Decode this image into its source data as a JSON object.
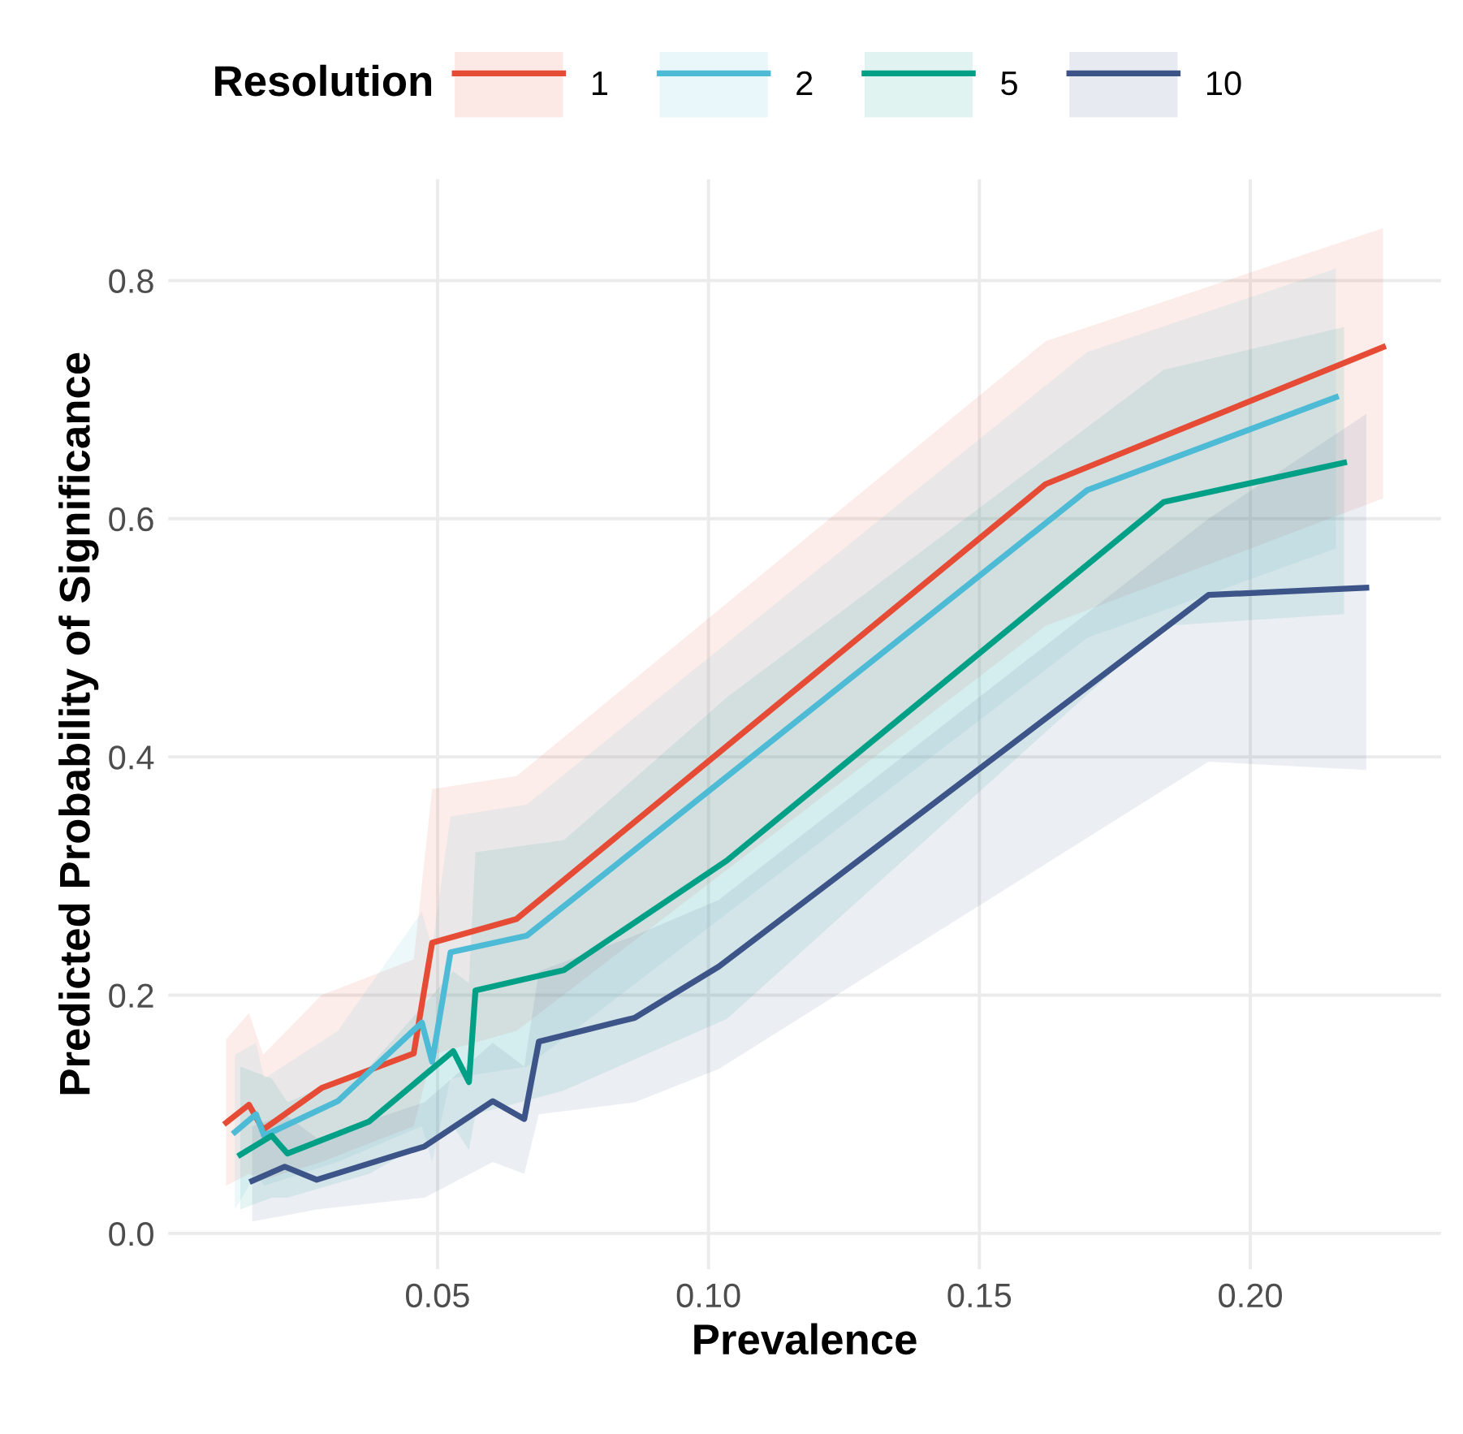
{
  "chart_data": {
    "type": "line",
    "xlabel": "Prevalence",
    "ylabel": "Predicted Probability of Significance",
    "legend_title": "Resolution",
    "series": [
      {
        "name": "1",
        "color": "#e64b35",
        "x": [
          0.011,
          0.0152,
          0.0178,
          0.0286,
          0.0456,
          0.049,
          0.0646,
          0.1622,
          0.2245
        ],
        "values": [
          0.093,
          0.108,
          0.087,
          0.122,
          0.151,
          0.244,
          0.264,
          0.629,
          0.744
        ],
        "lower": [
          0.04,
          0.05,
          0.045,
          0.06,
          0.09,
          0.15,
          0.17,
          0.51,
          0.617
        ],
        "upper": [
          0.163,
          0.185,
          0.15,
          0.2,
          0.23,
          0.373,
          0.384,
          0.749,
          0.844
        ]
      },
      {
        "name": "2",
        "color": "#4dbbd5",
        "x": [
          0.0126,
          0.0165,
          0.018,
          0.0316,
          0.0471,
          0.049,
          0.0524,
          0.0665,
          0.1699,
          0.2158
        ],
        "values": [
          0.085,
          0.1,
          0.082,
          0.111,
          0.177,
          0.144,
          0.236,
          0.25,
          0.624,
          0.702
        ],
        "lower": [
          0.02,
          0.05,
          0.04,
          0.06,
          0.09,
          0.06,
          0.13,
          0.14,
          0.5,
          0.575
        ],
        "upper": [
          0.15,
          0.16,
          0.13,
          0.17,
          0.27,
          0.24,
          0.35,
          0.36,
          0.74,
          0.81
        ]
      },
      {
        "name": "5",
        "color": "#00a087",
        "x": [
          0.0136,
          0.0194,
          0.0223,
          0.0374,
          0.0529,
          0.0558,
          0.057,
          0.0733,
          0.1034,
          0.184,
          0.2173
        ],
        "values": [
          0.066,
          0.082,
          0.067,
          0.094,
          0.153,
          0.127,
          0.204,
          0.221,
          0.313,
          0.614,
          0.647
        ],
        "lower": [
          0.02,
          0.03,
          0.03,
          0.05,
          0.09,
          0.07,
          0.1,
          0.12,
          0.18,
          0.51,
          0.52
        ],
        "upper": [
          0.14,
          0.13,
          0.11,
          0.14,
          0.22,
          0.21,
          0.32,
          0.33,
          0.45,
          0.725,
          0.761
        ]
      },
      {
        "name": "10",
        "color": "#3c5488",
        "x": [
          0.0158,
          0.0218,
          0.0277,
          0.0476,
          0.0602,
          0.066,
          0.0687,
          0.0864,
          0.1019,
          0.1923,
          0.2214
        ],
        "values": [
          0.044,
          0.056,
          0.045,
          0.073,
          0.111,
          0.096,
          0.161,
          0.181,
          0.224,
          0.536,
          0.542
        ],
        "lower": [
          0.01,
          0.015,
          0.02,
          0.03,
          0.06,
          0.05,
          0.1,
          0.11,
          0.138,
          0.396,
          0.389
        ],
        "upper": [
          0.09,
          0.1,
          0.08,
          0.11,
          0.16,
          0.14,
          0.22,
          0.25,
          0.28,
          0.6,
          0.688
        ]
      }
    ],
    "xlim": [
      0.0003,
      0.2352
    ],
    "ylim": [
      -0.03,
      0.885
    ],
    "xticks": [
      {
        "value": 0.05,
        "label": "0.05"
      },
      {
        "value": 0.1,
        "label": "0.10"
      },
      {
        "value": 0.15,
        "label": "0.15"
      },
      {
        "value": 0.2,
        "label": "0.20"
      }
    ],
    "yticks": [
      {
        "value": 0,
        "label": "0.0"
      },
      {
        "value": 0.2,
        "label": "0.2"
      },
      {
        "value": 0.4,
        "label": "0.4"
      },
      {
        "value": 0.6,
        "label": "0.6"
      },
      {
        "value": 0.8,
        "label": "0.8"
      }
    ],
    "grid": true,
    "legend": "top",
    "marker": "none",
    "line_style": "solid"
  }
}
